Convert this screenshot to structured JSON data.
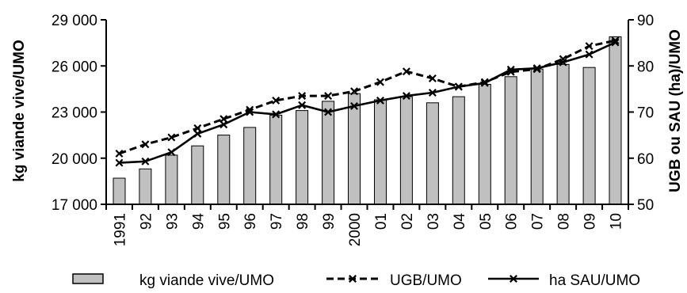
{
  "chart_data": {
    "type": "bar+line",
    "categories": [
      "1991",
      "92",
      "93",
      "94",
      "95",
      "96",
      "97",
      "98",
      "99",
      "2000",
      "01",
      "02",
      "03",
      "04",
      "05",
      "06",
      "07",
      "08",
      "09",
      "10"
    ],
    "left_axis": {
      "label": "kg viande vive/UMO",
      "ylim": [
        17000,
        29000
      ],
      "ticks": [
        17000,
        20000,
        23000,
        26000,
        29000
      ],
      "tick_labels": [
        "17 000",
        "20 000",
        "23 000",
        "26 000",
        "29 000"
      ]
    },
    "right_axis": {
      "label": "UGB ou SAU (ha)/UMO",
      "ylim": [
        50,
        90
      ],
      "ticks": [
        50,
        60,
        70,
        80,
        90
      ],
      "tick_labels": [
        "50",
        "60",
        "70",
        "80",
        "90"
      ]
    },
    "series": [
      {
        "name": "kg viande vive/UMO",
        "kind": "bar",
        "axis": "left",
        "color": "#c0c0c0",
        "values": [
          18700,
          19300,
          20200,
          20800,
          21500,
          22000,
          22800,
          23100,
          23700,
          24200,
          23800,
          24000,
          23600,
          24000,
          24800,
          25300,
          25800,
          26100,
          25900,
          27900
        ]
      },
      {
        "name": "UGB/UMO",
        "kind": "line",
        "style": "dashed",
        "axis": "right",
        "color": "#000000",
        "values": [
          61,
          63,
          64.5,
          66.5,
          68.5,
          70.5,
          72.5,
          73.5,
          73.5,
          74.5,
          76.5,
          78.8,
          77.3,
          75.5,
          76.5,
          78.7,
          79.3,
          81.5,
          84.3,
          85.5
        ]
      },
      {
        "name": "ha SAU/UMO",
        "kind": "line",
        "style": "solid",
        "axis": "right",
        "color": "#000000",
        "values": [
          59,
          59.3,
          61.3,
          65.3,
          67.3,
          70,
          69.5,
          71.5,
          70,
          71.3,
          72.5,
          73.5,
          74.2,
          75.5,
          76.3,
          79.2,
          79.5,
          80.8,
          82.5,
          85.1
        ]
      }
    ],
    "legend": {
      "placement": "bottom",
      "entries": [
        "kg viande vive/UMO",
        "UGB/UMO",
        "ha SAU/UMO"
      ]
    },
    "grid": false
  }
}
